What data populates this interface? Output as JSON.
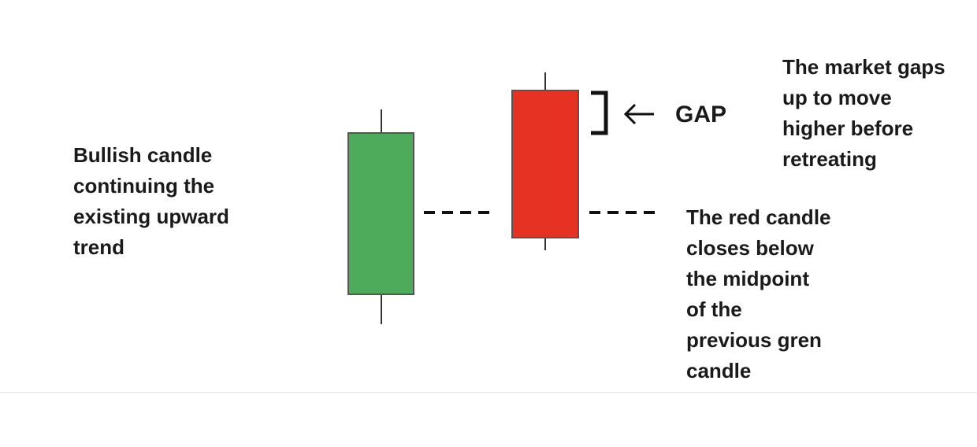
{
  "colors": {
    "bullish_candle": "#4fab5c",
    "bearish_candle": "#e53223",
    "candle_outline": "#555555",
    "wick": "#333333",
    "dash": "#111111",
    "bracket": "#111111",
    "text": "#1a1a1a"
  },
  "icons": {
    "gap_arrow": "left-arrow-icon",
    "gap_bracket": "bracket-icon"
  },
  "gap_label": "GAP",
  "labels": {
    "bullish": [
      "Bullish candle",
      "continuing the",
      "existing upward",
      "trend"
    ],
    "gap_up": [
      "The market gaps",
      "up to move",
      "higher before",
      "retreating"
    ],
    "red_close": [
      "The red candle",
      "closes below",
      "the midpoint",
      "of the",
      "previous gren",
      "candle"
    ]
  }
}
